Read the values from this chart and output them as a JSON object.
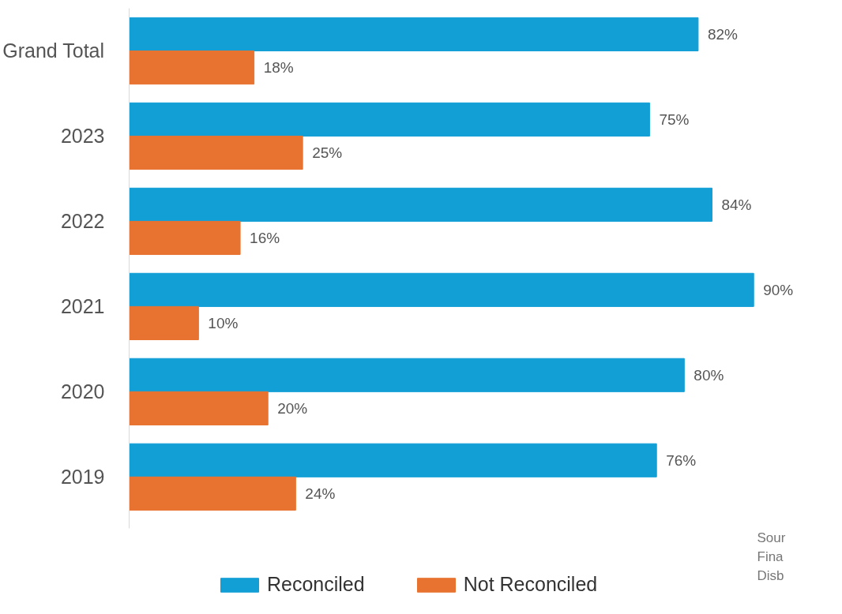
{
  "chart_data": {
    "type": "bar",
    "orientation": "horizontal",
    "categories": [
      "Grand Total",
      "2023",
      "2022",
      "2021",
      "2020",
      "2019"
    ],
    "series": [
      {
        "name": "Reconciled",
        "color": "#129fd6",
        "values": [
          82,
          75,
          84,
          90,
          80,
          76
        ],
        "value_labels": [
          "82%",
          "75%",
          "84%",
          "90%",
          "80%",
          "76%"
        ]
      },
      {
        "name": "Not Reconciled",
        "color": "#e87331",
        "values": [
          18,
          25,
          16,
          10,
          20,
          24
        ],
        "value_labels": [
          "18%",
          "25%",
          "16%",
          "10%",
          "20%",
          "24%"
        ]
      }
    ],
    "legend": "bottom",
    "grid": false,
    "tick_labels": "y",
    "annotations": [
      "Sour",
      "Fina",
      "Disb"
    ]
  }
}
